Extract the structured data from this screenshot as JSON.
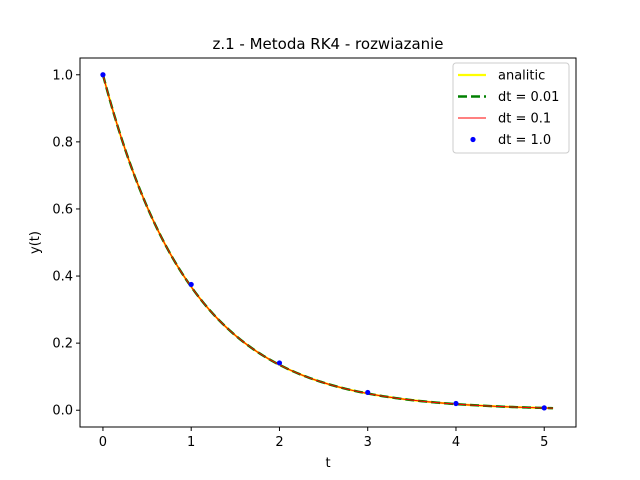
{
  "chart_data": {
    "type": "line",
    "title": "z.1 - Metoda RK4 - rozwiazanie",
    "xlabel": "t",
    "ylabel": "y(t)",
    "xlim": [
      -0.26,
      5.36
    ],
    "ylim": [
      -0.05,
      1.05
    ],
    "xticks": [
      "0",
      "1",
      "2",
      "3",
      "4",
      "5"
    ],
    "yticks": [
      "0.0",
      "0.2",
      "0.4",
      "0.6",
      "0.8",
      "1.0"
    ],
    "grid": false,
    "legend_position": "upper right",
    "series": [
      {
        "name": "analitic",
        "style": "line",
        "color": "#ffff00",
        "function": "exp(-t)",
        "t_range": [
          0,
          5.1
        ]
      },
      {
        "name": "dt = 0.01",
        "style": "dashed",
        "color": "#008000",
        "function": "exp(-t)",
        "t_range": [
          0,
          5.1
        ]
      },
      {
        "name": "dt = 0.1",
        "style": "thin-line",
        "color": "#ff0000",
        "function": "exp(-t)",
        "t_range": [
          0,
          5.1
        ]
      },
      {
        "name": "dt = 1.0",
        "style": "scatter",
        "color": "#0000ff",
        "x": [
          0,
          1,
          2,
          3,
          4,
          5
        ],
        "y": [
          1.0,
          0.375,
          0.141,
          0.053,
          0.02,
          0.007
        ]
      }
    ]
  }
}
